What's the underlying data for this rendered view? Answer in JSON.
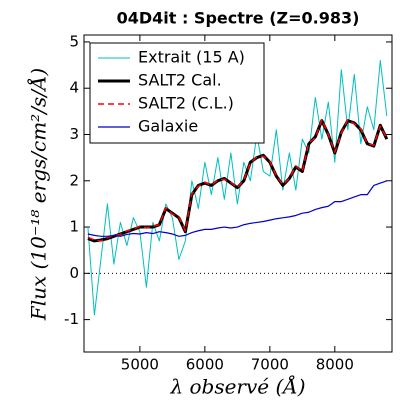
{
  "chart_data": {
    "type": "line",
    "title": "04D4it : Spectre (Z=0.983)",
    "x_label": "λ observé (Å)",
    "y_label": "Flux (10⁻¹⁸ ergs/cm²/s/Å)",
    "x": [
      4200,
      4300,
      4400,
      4500,
      4600,
      4700,
      4800,
      4900,
      5000,
      5100,
      5200,
      5300,
      5400,
      5500,
      5600,
      5700,
      5800,
      5900,
      6000,
      6100,
      6200,
      6300,
      6400,
      6500,
      6600,
      6700,
      6800,
      6900,
      7000,
      7100,
      7200,
      7300,
      7400,
      7500,
      7600,
      7700,
      7800,
      7900,
      8000,
      8100,
      8200,
      8300,
      8400,
      8500,
      8600,
      8700,
      8800
    ],
    "series": [
      {
        "name": "Extrait (15 A)",
        "color": "#00bfbf",
        "style": "solid",
        "width": 1,
        "values": [
          1.0,
          -0.9,
          0.3,
          1.5,
          0.2,
          1.1,
          0.6,
          1.2,
          0.9,
          -0.3,
          1.1,
          0.7,
          1.5,
          1.2,
          0.3,
          0.7,
          2.0,
          1.4,
          2.4,
          1.7,
          2.5,
          1.6,
          2.6,
          1.5,
          2.4,
          2.0,
          3.0,
          2.2,
          2.1,
          3.1,
          1.8,
          2.6,
          1.8,
          2.9,
          2.6,
          3.8,
          2.9,
          3.7,
          2.4,
          4.4,
          3.1,
          4.3,
          2.8,
          3.6,
          3.1,
          4.6,
          3.4
        ]
      },
      {
        "name": "SALT2 Cal.",
        "color": "#000000",
        "style": "solid",
        "width": 3,
        "values": [
          0.75,
          0.7,
          0.72,
          0.75,
          0.8,
          0.85,
          0.9,
          0.95,
          1.0,
          1.0,
          1.0,
          1.05,
          1.4,
          1.3,
          1.2,
          0.9,
          1.7,
          1.9,
          1.95,
          1.9,
          2.0,
          2.05,
          1.95,
          1.85,
          2.0,
          2.4,
          2.5,
          2.55,
          2.4,
          2.1,
          1.9,
          2.05,
          2.3,
          2.2,
          2.8,
          2.95,
          3.3,
          3.0,
          2.6,
          3.05,
          3.3,
          3.25,
          3.1,
          2.8,
          2.75,
          3.2,
          2.9
        ]
      },
      {
        "name": "SALT2 (C.L.)",
        "color": "#ff0000",
        "style": "dashed",
        "width": 1.5,
        "values": [
          0.78,
          0.72,
          0.7,
          0.77,
          0.82,
          0.84,
          0.92,
          0.95,
          1.02,
          0.98,
          1.02,
          1.05,
          1.42,
          1.28,
          1.22,
          0.92,
          1.72,
          1.88,
          1.97,
          1.9,
          2.02,
          2.03,
          1.97,
          1.85,
          2.02,
          2.38,
          2.52,
          2.53,
          2.42,
          2.1,
          1.92,
          2.05,
          2.32,
          2.2,
          2.82,
          2.93,
          3.32,
          3.0,
          2.62,
          3.03,
          3.32,
          3.23,
          3.12,
          2.8,
          2.77,
          3.18,
          2.92
        ]
      },
      {
        "name": "Galaxie",
        "color": "#0000cc",
        "style": "solid",
        "width": 1.2,
        "values": [
          0.85,
          0.82,
          0.8,
          0.8,
          0.82,
          0.8,
          0.84,
          0.86,
          0.85,
          0.88,
          0.86,
          0.9,
          0.88,
          0.85,
          0.8,
          0.82,
          0.88,
          0.92,
          0.95,
          0.95,
          0.98,
          1.0,
          0.98,
          1.0,
          1.05,
          1.08,
          1.1,
          1.12,
          1.15,
          1.18,
          1.2,
          1.22,
          1.25,
          1.3,
          1.32,
          1.38,
          1.42,
          1.45,
          1.55,
          1.55,
          1.6,
          1.65,
          1.7,
          1.7,
          1.9,
          1.95,
          2.0
        ]
      }
    ],
    "xlim": [
      4140,
      8880
    ],
    "ylim": [
      -1.7,
      5.15
    ],
    "xticks": [
      5000,
      6000,
      7000,
      8000
    ],
    "yticks": [
      -1,
      0,
      1,
      2,
      3,
      4,
      5
    ],
    "reference_line": {
      "y": 0,
      "style": "dotted"
    },
    "legend": "upper left",
    "grid": false
  }
}
